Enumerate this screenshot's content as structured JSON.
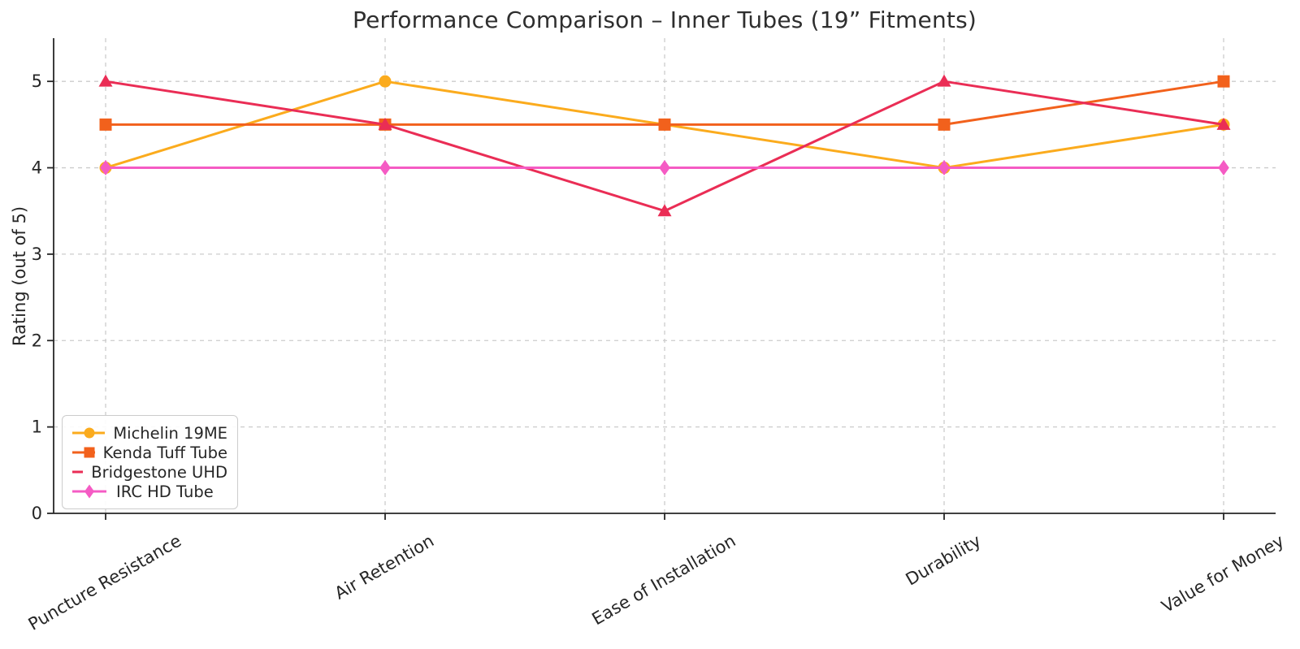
{
  "chart_data": {
    "type": "line",
    "title": "Performance Comparison – Inner Tubes (19” Fitments)",
    "xlabel": "",
    "ylabel": "Rating (out of 5)",
    "categories": [
      "Puncture Resistance",
      "Air Retention",
      "Ease of Installation",
      "Durability",
      "Value for Money"
    ],
    "yticks": [
      0,
      1,
      2,
      3,
      4,
      5
    ],
    "ylim": [
      0,
      5.5
    ],
    "grid": true,
    "grid_style": "dashed",
    "legend_position": "lower left",
    "colors": {
      "grid": "#cccccc",
      "axis": "#262626",
      "text": "#262626",
      "title": "#2e2e2e",
      "background": "#ffffff"
    },
    "series": [
      {
        "name": "Michelin 19ME",
        "marker": "circle",
        "color": "#FBAB1D",
        "values": [
          4.0,
          5.0,
          4.5,
          4.0,
          4.5
        ]
      },
      {
        "name": "Kenda Tuff Tube",
        "marker": "square",
        "color": "#F2611C",
        "values": [
          4.5,
          4.5,
          4.5,
          4.5,
          5.0
        ]
      },
      {
        "name": "Bridgestone UHD",
        "marker": "triangle",
        "color": "#EA2D55",
        "values": [
          5.0,
          4.5,
          3.5,
          5.0,
          4.5
        ]
      },
      {
        "name": "IRC HD Tube",
        "marker": "diamond",
        "color": "#F55BC4",
        "values": [
          4.0,
          4.0,
          4.0,
          4.0,
          4.0
        ]
      }
    ]
  }
}
